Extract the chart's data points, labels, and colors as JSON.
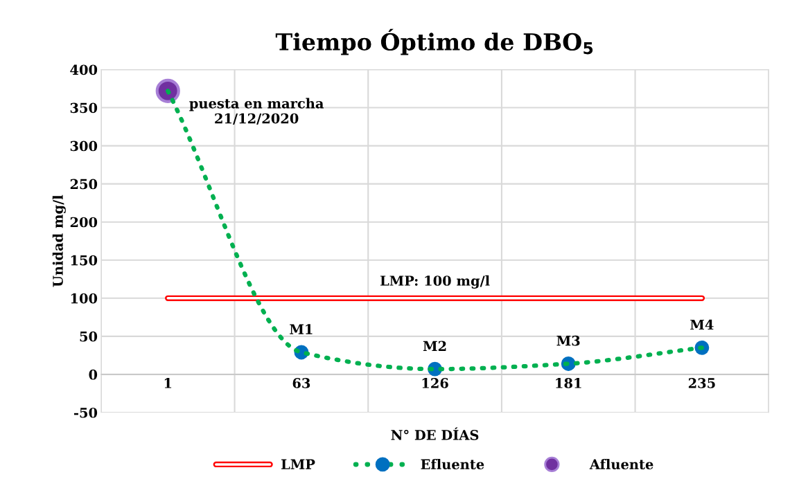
{
  "chart_data": {
    "type": "line",
    "title": "Tiempo Óptimo de DBO$_{5}$",
    "xlabel": "N° DE DÍAS",
    "ylabel": "Unidad mg/l",
    "categories": [
      "1",
      "63",
      "126",
      "181",
      "235"
    ],
    "series": [
      {
        "name": "LMP",
        "type": "line",
        "color": "#ff0000",
        "values": [
          100,
          100,
          100,
          100,
          100
        ],
        "marker": "none",
        "line_style": "solid"
      },
      {
        "name": "Efluente",
        "type": "line",
        "color": "#00b050",
        "colors": [
          "#0070c0",
          "#0070c0",
          "#0070c0",
          "#0070c0",
          "#0070c0"
        ],
        "values": [
          372,
          29,
          7,
          14,
          35
        ],
        "marker": "circle",
        "line_style": "dotted",
        "value_labels": [
          null,
          "M1",
          "M2",
          "M3",
          "M4"
        ]
      },
      {
        "name": "Afluente",
        "type": "scatter",
        "color": "#7030a0",
        "values": [
          372,
          null,
          null,
          null,
          null
        ],
        "marker": "circle"
      }
    ],
    "annotations": [
      {
        "text": "puesta en marcha\n21/12/2020",
        "x": "1",
        "y": 372
      },
      {
        "text": "LMP: 100 mg/l",
        "x": "126",
        "y": 100
      }
    ],
    "ylim": [
      -50,
      400
    ],
    "yticks": [
      -50,
      0,
      50,
      100,
      150,
      200,
      250,
      300,
      350,
      400
    ],
    "grid": true,
    "legend": "bottom"
  }
}
